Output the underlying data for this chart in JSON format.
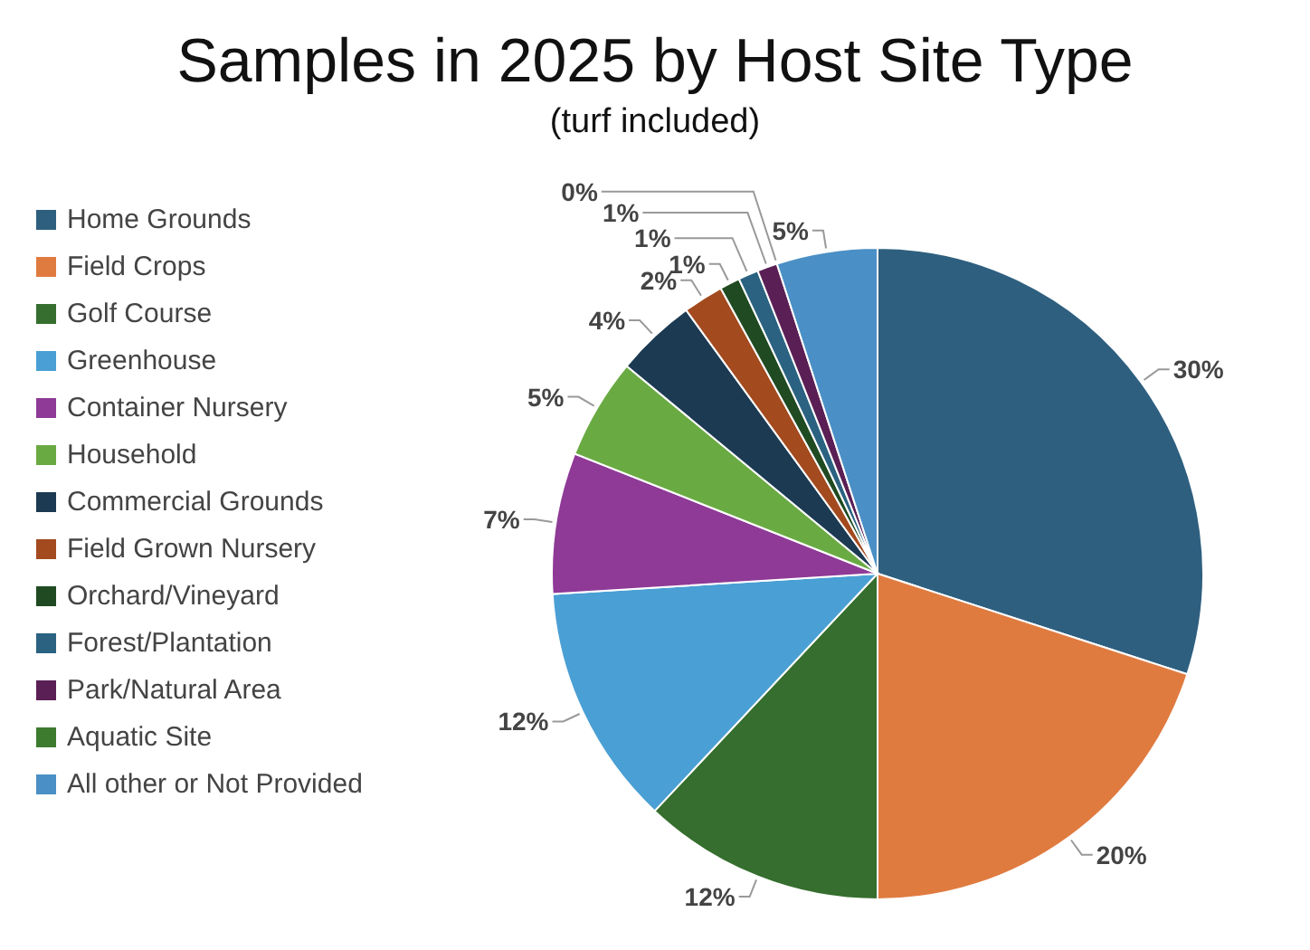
{
  "chart_data": {
    "type": "pie",
    "title": "Samples in 2025 by Host Site Type",
    "subtitle": "(turf included)",
    "categories": [
      "Home Grounds",
      "Field Crops",
      "Golf Course",
      "Greenhouse",
      "Container Nursery",
      "Household",
      "Commercial Grounds",
      "Field Grown Nursery",
      "Orchard/Vineyard",
      "Forest/Plantation",
      "Park/Natural Area",
      "Aquatic Site",
      "All other or Not Provided"
    ],
    "values": [
      30,
      20,
      12,
      12,
      7,
      5,
      4,
      2,
      1,
      1,
      1,
      0,
      5
    ],
    "value_labels": [
      "30%",
      "20%",
      "12%",
      "12%",
      "7%",
      "5%",
      "4%",
      "2%",
      "1%",
      "1%",
      "1%",
      "0%",
      "5%"
    ],
    "colors": [
      "#2e5f7f",
      "#e07b40",
      "#356e2e",
      "#4a9fd4",
      "#8e3a96",
      "#6aaa43",
      "#1c3a52",
      "#a34a1f",
      "#1f4a22",
      "#2b6281",
      "#5a1f55",
      "#3d7b2f",
      "#4a8fc5"
    ],
    "legend": "left"
  }
}
